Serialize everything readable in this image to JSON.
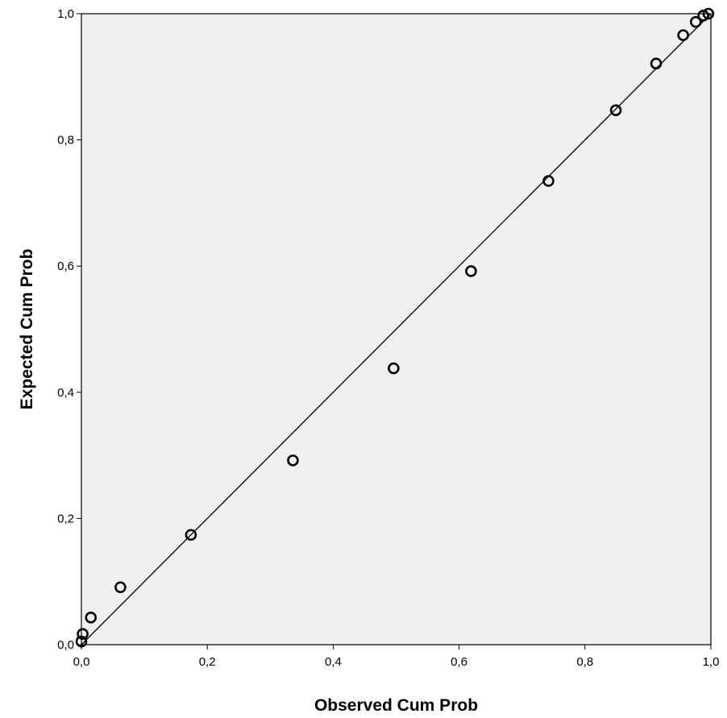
{
  "chart_data": {
    "type": "scatter",
    "xlabel": "Observed Cum Prob",
    "ylabel": "Expected Cum Prob",
    "xlim": [
      0,
      1
    ],
    "ylim": [
      0,
      1
    ],
    "x_ticks": [
      "0,0",
      "0,2",
      "0,4",
      "0,6",
      "0,8",
      "1,0"
    ],
    "y_ticks": [
      "0,0",
      "0,2",
      "0,4",
      "0,6",
      "0,8",
      "1,0"
    ],
    "tick_values": [
      0,
      0.2,
      0.4,
      0.6,
      0.8,
      1.0
    ],
    "reference_line": {
      "from": [
        0,
        0
      ],
      "to": [
        1,
        1
      ]
    },
    "grid": false,
    "legend": "none",
    "plot_background": "#f0f0f0",
    "point_color": "#000000",
    "points": [
      {
        "x": 0.0,
        "y": 0.005
      },
      {
        "x": 0.002,
        "y": 0.017
      },
      {
        "x": 0.015,
        "y": 0.043
      },
      {
        "x": 0.062,
        "y": 0.091
      },
      {
        "x": 0.174,
        "y": 0.174
      },
      {
        "x": 0.336,
        "y": 0.292
      },
      {
        "x": 0.496,
        "y": 0.438
      },
      {
        "x": 0.619,
        "y": 0.592
      },
      {
        "x": 0.742,
        "y": 0.735
      },
      {
        "x": 0.849,
        "y": 0.847
      },
      {
        "x": 0.913,
        "y": 0.921
      },
      {
        "x": 0.956,
        "y": 0.966
      },
      {
        "x": 0.976,
        "y": 0.987
      },
      {
        "x": 0.988,
        "y": 0.997
      },
      {
        "x": 0.996,
        "y": 1.0
      }
    ]
  }
}
